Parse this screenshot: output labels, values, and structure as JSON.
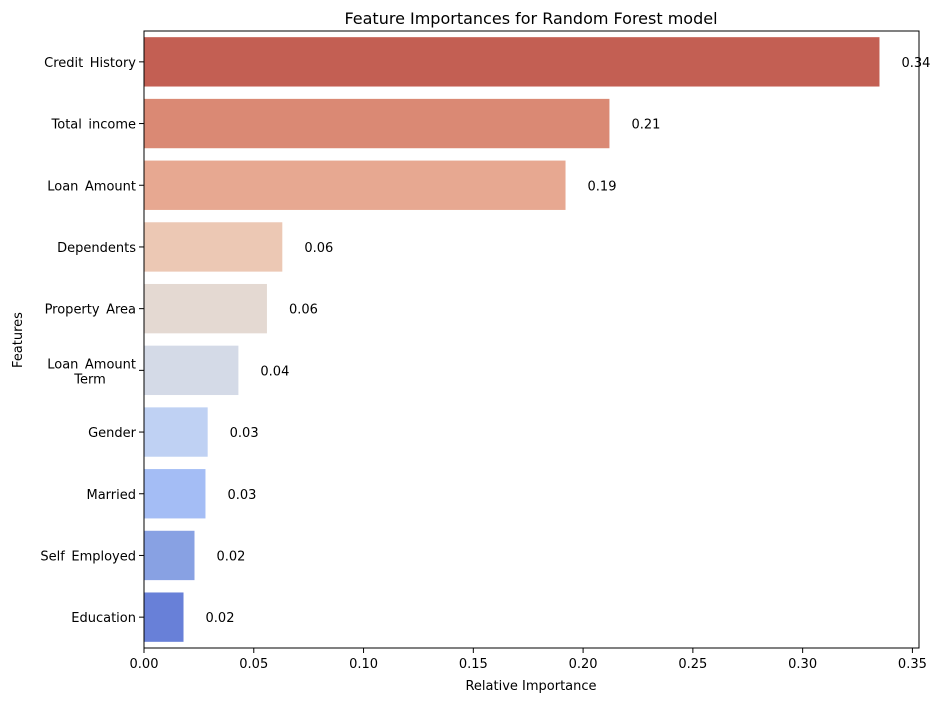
{
  "chart_data": {
    "type": "bar",
    "orientation": "horizontal",
    "title": "Feature Importances for Random Forest model",
    "xlabel": "Relative Importance",
    "ylabel": "Features",
    "xlim": [
      0,
      0.353
    ],
    "xticks": [
      "0.00",
      "0.05",
      "0.10",
      "0.15",
      "0.20",
      "0.25",
      "0.30",
      "0.35"
    ],
    "tick_values": [
      0,
      0.05,
      0.1,
      0.15,
      0.2,
      0.25,
      0.3,
      0.35
    ],
    "grid": false,
    "categories": [
      [
        "Credit",
        "History"
      ],
      [
        "Total",
        "income"
      ],
      [
        "Loan",
        "Amount"
      ],
      [
        "Dependents"
      ],
      [
        "Property",
        "Area"
      ],
      [
        "Loan",
        "Amount",
        "Term"
      ],
      [
        "Gender"
      ],
      [
        "Married"
      ],
      [
        "Self",
        "Employed"
      ],
      [
        "Education"
      ]
    ],
    "values": [
      0.335,
      0.212,
      0.192,
      0.063,
      0.056,
      0.043,
      0.029,
      0.028,
      0.023,
      0.018
    ],
    "data_labels": [
      "0.34",
      "0.21",
      "0.19",
      "0.06",
      "0.06",
      "0.04",
      "0.03",
      "0.03",
      "0.02",
      "0.02"
    ],
    "colors": [
      "#c35f53",
      "#da8974",
      "#e7a891",
      "#ecc8b4",
      "#e4d9d2",
      "#d4dae7",
      "#bfd1f3",
      "#a4bdf5",
      "#88a1e3",
      "#6880d8"
    ]
  }
}
